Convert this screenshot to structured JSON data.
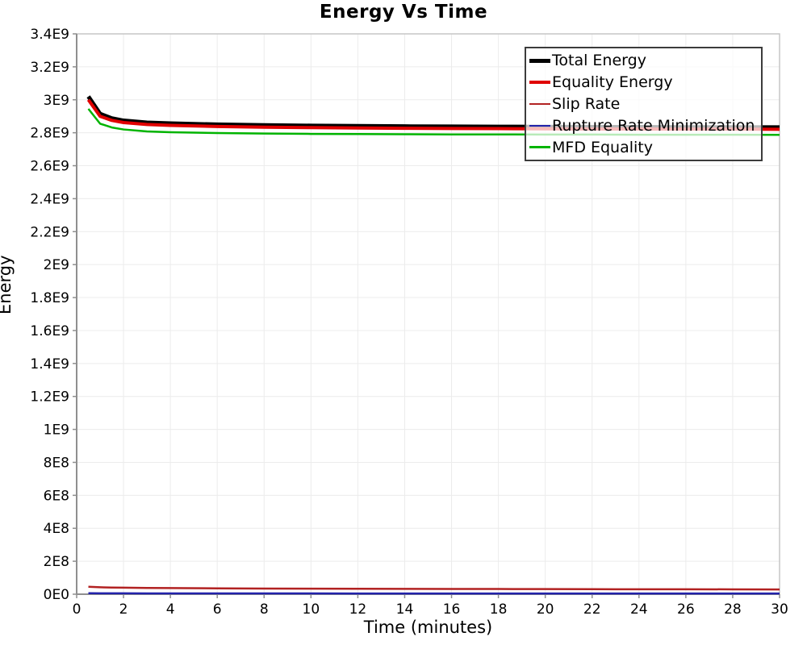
{
  "title": "Energy Vs Time",
  "colors": {
    "background": "#ffffff",
    "grid": "#ececec",
    "plot_border": "#c6c6c6",
    "axis": "#8f8f8f",
    "tick_text": "#000000",
    "legend_border": "#3c3c3c",
    "legend_background": "rgba(255,255,255,0.72)"
  },
  "chart_data": {
    "type": "line",
    "title": "Energy Vs Time",
    "xlabel": "Time (minutes)",
    "ylabel": "Energy",
    "xlim": [
      0,
      30
    ],
    "ylim": [
      0,
      3400000000.0
    ],
    "grid": true,
    "legend_position": "top-right",
    "x_ticks": {
      "values": [
        0,
        2,
        4,
        6,
        8,
        10,
        12,
        14,
        16,
        18,
        20,
        22,
        24,
        26,
        28,
        30
      ],
      "labels": [
        "0",
        "2",
        "4",
        "6",
        "8",
        "10",
        "12",
        "14",
        "16",
        "18",
        "20",
        "22",
        "24",
        "26",
        "28",
        "30"
      ]
    },
    "y_ticks": {
      "values": [
        0,
        200000000.0,
        400000000.0,
        600000000.0,
        800000000.0,
        1000000000.0,
        1200000000.0,
        1400000000.0,
        1600000000.0,
        1800000000.0,
        2000000000.0,
        2200000000.0,
        2400000000.0,
        2600000000.0,
        2800000000.0,
        3000000000.0,
        3200000000.0,
        3400000000.0
      ],
      "labels": [
        "0E0",
        "2E8",
        "4E8",
        "6E8",
        "8E8",
        "1E9",
        "1.2E9",
        "1.4E9",
        "1.6E9",
        "1.8E9",
        "2E9",
        "2.2E9",
        "2.4E9",
        "2.6E9",
        "2.8E9",
        "3E9",
        "3.2E9",
        "3.4E9"
      ]
    },
    "x": [
      0.5,
      1,
      1.5,
      2,
      3,
      4,
      6,
      8,
      10,
      12,
      14,
      16,
      18,
      20,
      22,
      24,
      26,
      28,
      30
    ],
    "series": [
      {
        "name": "Total Energy",
        "color": "#000000",
        "line_width": 5,
        "values": [
          3020000000.0,
          2915000000.0,
          2888000000.0,
          2874000000.0,
          2862000000.0,
          2857000000.0,
          2850000000.0,
          2846000000.0,
          2843000000.0,
          2841000000.0,
          2839000000.0,
          2838000000.0,
          2837000000.0,
          2836000000.0,
          2835000000.0,
          2835000000.0,
          2834000000.0,
          2834000000.0,
          2833000000.0
        ]
      },
      {
        "name": "Equality Energy",
        "color": "#e00000",
        "line_width": 4,
        "values": [
          3000000000.0,
          2900000000.0,
          2875000000.0,
          2862000000.0,
          2850000000.0,
          2845000000.0,
          2838000000.0,
          2834000000.0,
          2831000000.0,
          2829000000.0,
          2827000000.0,
          2826000000.0,
          2825000000.0,
          2824000000.0,
          2823000000.0,
          2823000000.0,
          2822000000.0,
          2822000000.0,
          2821000000.0
        ]
      },
      {
        "name": "Slip Rate",
        "color": "#b22222",
        "line_width": 2.5,
        "values": [
          45000000.0,
          42000000.0,
          40500000.0,
          39500000.0,
          38000000.0,
          37000000.0,
          35500000.0,
          34500000.0,
          33500000.0,
          33000000.0,
          32500000.0,
          32000000.0,
          31500000.0,
          31000000.0,
          30500000.0,
          30000000.0,
          30000000.0,
          29500000.0,
          29000000.0
        ]
      },
      {
        "name": "Rupture Rate Minimization",
        "color": "#2222aa",
        "line_width": 2.5,
        "values": [
          6000000.0,
          5500000.0,
          5300000.0,
          5200000.0,
          5000000.0,
          5000000.0,
          4800000.0,
          4700000.0,
          4600000.0,
          4500000.0,
          4500000.0,
          4400000.0,
          4400000.0,
          4300000.0,
          4300000.0,
          4200000.0,
          4200000.0,
          4100000.0,
          4100000.0
        ]
      },
      {
        "name": "MFD Equality",
        "color": "#00b400",
        "line_width": 2.5,
        "values": [
          2945000000.0,
          2855000000.0,
          2832000000.0,
          2820000000.0,
          2808000000.0,
          2803000000.0,
          2798000000.0,
          2795000000.0,
          2793000000.0,
          2792000000.0,
          2791000000.0,
          2790000000.0,
          2790000000.0,
          2789000000.0,
          2789000000.0,
          2788000000.0,
          2788000000.0,
          2788000000.0,
          2787000000.0
        ]
      }
    ]
  }
}
